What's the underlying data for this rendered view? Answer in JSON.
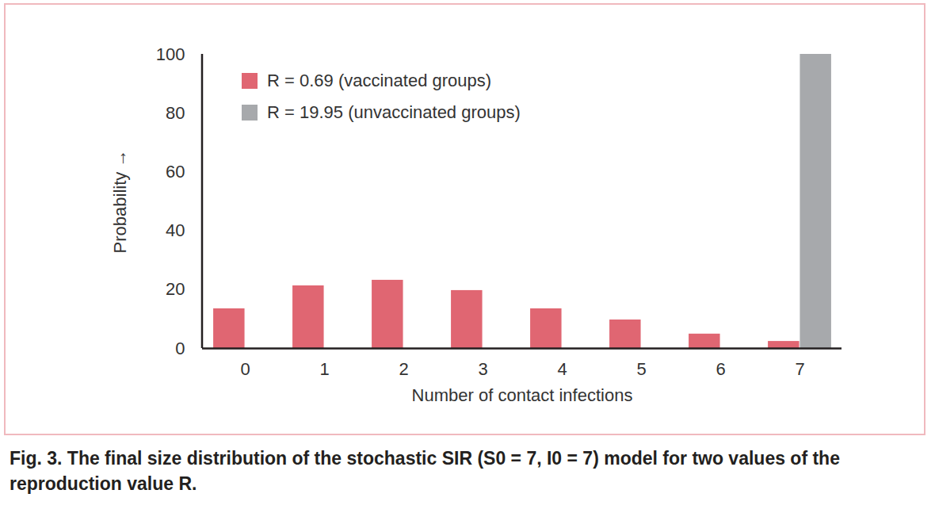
{
  "chart_data": {
    "type": "bar",
    "title": "Fig. 3. The final size distribution of the stochastic SIR (S0 = 7, I0 = 7) model for two values of the reproduction value R.",
    "xlabel": "Number of contact infections",
    "ylabel": "Probability",
    "categories": [
      0,
      1,
      2,
      3,
      4,
      5,
      6,
      7
    ],
    "series": [
      {
        "name": "R = 0.69 (vaccinated groups)",
        "color": "#e06672",
        "values": [
          13.5,
          21.3,
          23.2,
          19.7,
          13.5,
          9.7,
          4.9,
          2.4
        ]
      },
      {
        "name": "R = 19.95 (unvaccinated groups)",
        "color": "#a7a9ac",
        "values": [
          0,
          0,
          0,
          0,
          0,
          0,
          0,
          100
        ]
      }
    ],
    "ylim": [
      0,
      100
    ],
    "yticks": [
      0,
      20,
      40,
      60,
      80,
      100
    ],
    "grid": false,
    "legend": "top-left"
  }
}
